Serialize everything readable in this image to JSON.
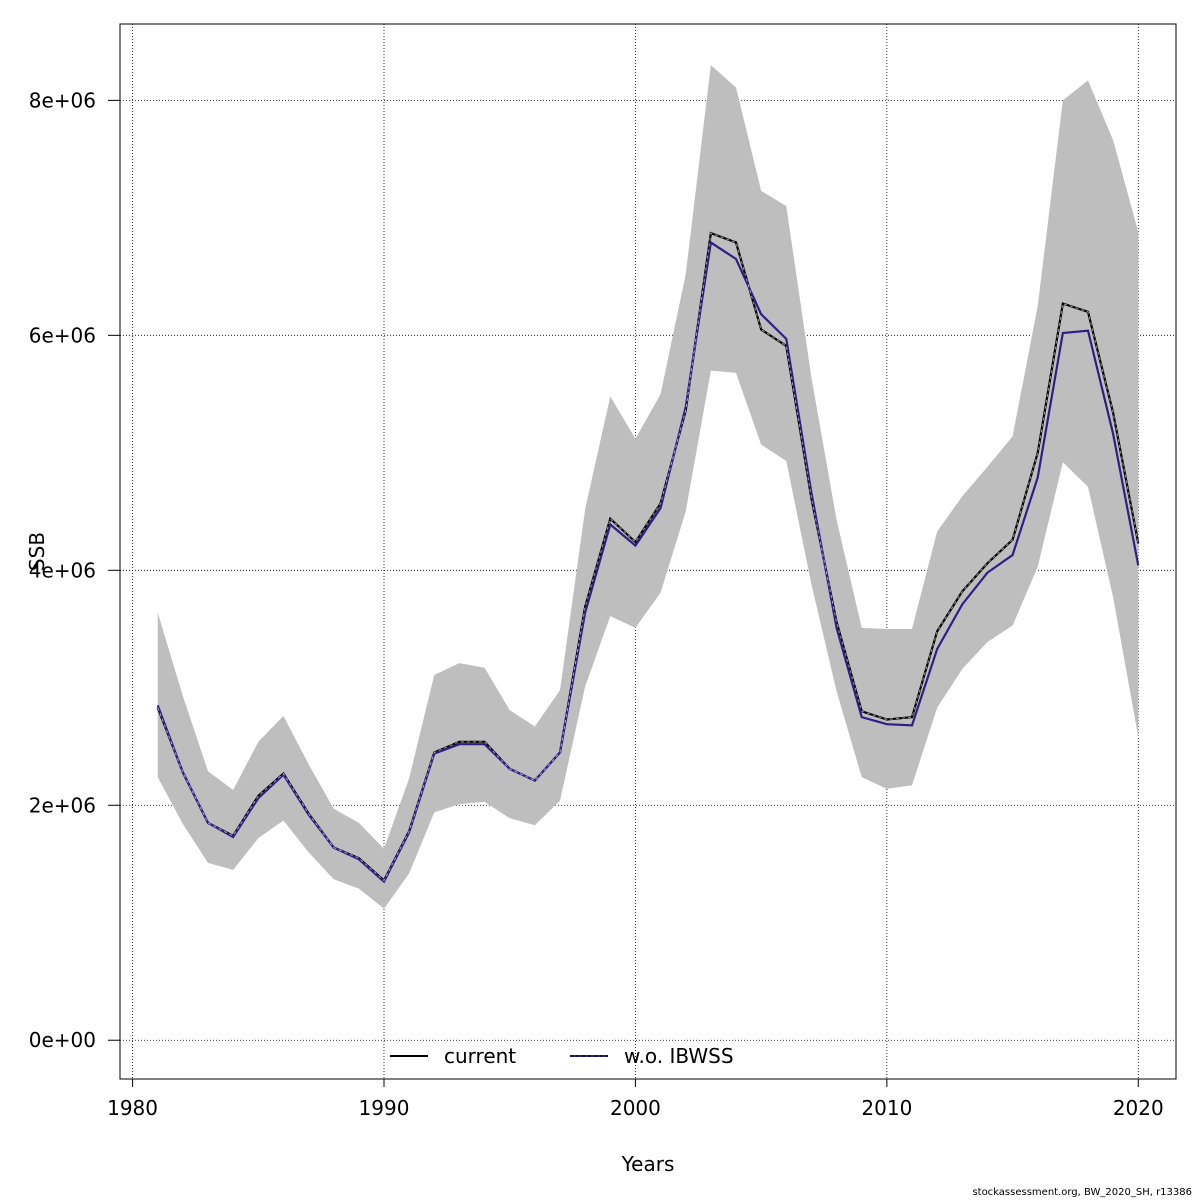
{
  "chart_data": {
    "type": "line",
    "xlabel": "Years",
    "ylabel": "SSB",
    "xlim": [
      1979.5,
      2021.5
    ],
    "ylim": [
      -330000,
      8650000
    ],
    "x_ticks": [
      1980,
      1990,
      2000,
      2010,
      2020
    ],
    "x_tick_labels": [
      "1980",
      "1990",
      "2000",
      "2010",
      "2020"
    ],
    "y_ticks": [
      0,
      2000000,
      4000000,
      6000000,
      8000000
    ],
    "y_tick_labels": [
      "0e+00",
      "2e+06",
      "4e+06",
      "6e+06",
      "8e+06"
    ],
    "grid": true,
    "legend_position": "bottom-center",
    "x": [
      1981,
      1982,
      1983,
      1984,
      1985,
      1986,
      1987,
      1988,
      1989,
      1990,
      1991,
      1992,
      1993,
      1994,
      1995,
      1996,
      1997,
      1998,
      1999,
      2000,
      2001,
      2002,
      2003,
      2004,
      2005,
      2006,
      2007,
      2008,
      2009,
      2010,
      2011,
      2012,
      2013,
      2014,
      2015,
      2016,
      2017,
      2018,
      2019,
      2020
    ],
    "band": {
      "color": "#bebebe",
      "upper": [
        3640000,
        2930000,
        2290000,
        2130000,
        2540000,
        2760000,
        2350000,
        1970000,
        1850000,
        1630000,
        2230000,
        3110000,
        3210000,
        3170000,
        2810000,
        2670000,
        2980000,
        4520000,
        5480000,
        5120000,
        5500000,
        6520000,
        8300000,
        8110000,
        7230000,
        7100000,
        5640000,
        4430000,
        3510000,
        3500000,
        3500000,
        4330000,
        4630000,
        4880000,
        5140000,
        6250000,
        8000000,
        8170000,
        7660000,
        6880000
      ],
      "lower": [
        2240000,
        1840000,
        1510000,
        1450000,
        1720000,
        1870000,
        1600000,
        1370000,
        1290000,
        1120000,
        1420000,
        1940000,
        2010000,
        2030000,
        1890000,
        1830000,
        2040000,
        3010000,
        3610000,
        3510000,
        3810000,
        4500000,
        5700000,
        5680000,
        5070000,
        4930000,
        3880000,
        2970000,
        2240000,
        2140000,
        2170000,
        2830000,
        3160000,
        3390000,
        3530000,
        4030000,
        4920000,
        4710000,
        3770000,
        2580000
      ]
    },
    "series": [
      {
        "name": "current",
        "color": "#000000",
        "values": [
          2830000,
          2280000,
          1850000,
          1740000,
          2080000,
          2270000,
          1930000,
          1640000,
          1550000,
          1360000,
          1780000,
          2450000,
          2540000,
          2540000,
          2310000,
          2210000,
          2450000,
          3690000,
          4440000,
          4240000,
          4570000,
          5360000,
          6870000,
          6790000,
          6050000,
          5910000,
          4610000,
          3560000,
          2800000,
          2730000,
          2750000,
          3480000,
          3820000,
          4060000,
          4260000,
          5000000,
          6270000,
          6200000,
          5340000,
          4230000
        ]
      },
      {
        "name": "w.o. IBWSS",
        "color": "#2e1f87",
        "values": [
          2850000,
          2280000,
          1850000,
          1730000,
          2060000,
          2260000,
          1920000,
          1640000,
          1540000,
          1350000,
          1770000,
          2440000,
          2520000,
          2520000,
          2310000,
          2210000,
          2450000,
          3640000,
          4390000,
          4210000,
          4530000,
          5390000,
          6790000,
          6650000,
          6180000,
          5970000,
          4660000,
          3510000,
          2750000,
          2690000,
          2680000,
          3330000,
          3710000,
          3980000,
          4130000,
          4790000,
          6020000,
          6040000,
          5160000,
          4040000
        ]
      }
    ]
  },
  "footer": "stockassessment.org, BW_2020_SH, r13386"
}
